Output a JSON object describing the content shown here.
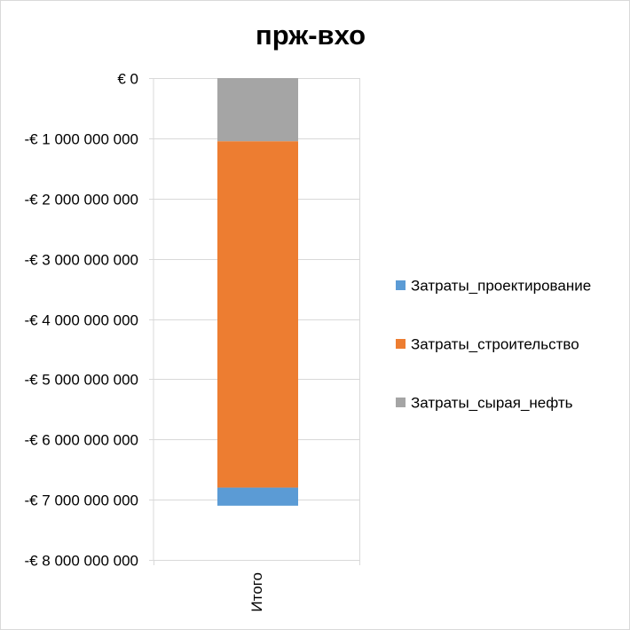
{
  "chart_data": {
    "type": "bar",
    "stacked": true,
    "title": "прж-вхо",
    "categories": [
      "Итого"
    ],
    "series": [
      {
        "name": "Затраты_проектирование",
        "values": [
          -300000000
        ],
        "color": "#5b9bd5"
      },
      {
        "name": "Затраты_строительство",
        "values": [
          -5750000000
        ],
        "color": "#ed7d31"
      },
      {
        "name": "Затраты_сырая_нефть",
        "values": [
          -1050000000
        ],
        "color": "#a5a5a5"
      }
    ],
    "stack_order_from_zero": [
      "Затраты_сырая_нефть",
      "Затраты_строительство",
      "Затраты_проектирование"
    ],
    "ylim": [
      -8000000000,
      0
    ],
    "y_ticks": [
      0,
      -1000000000,
      -2000000000,
      -3000000000,
      -4000000000,
      -5000000000,
      -6000000000,
      -7000000000,
      -8000000000
    ],
    "y_tick_labels": [
      "€ 0",
      "-€ 1 000 000 000",
      "-€ 2 000 000 000",
      "-€ 3 000 000 000",
      "-€ 4 000 000 000",
      "-€ 5 000 000 000",
      "-€ 6 000 000 000",
      "-€ 7 000 000 000",
      "-€ 8 000 000 000"
    ],
    "grid": true,
    "legend_position": "right",
    "gridline_color": "#d9d9d9"
  }
}
